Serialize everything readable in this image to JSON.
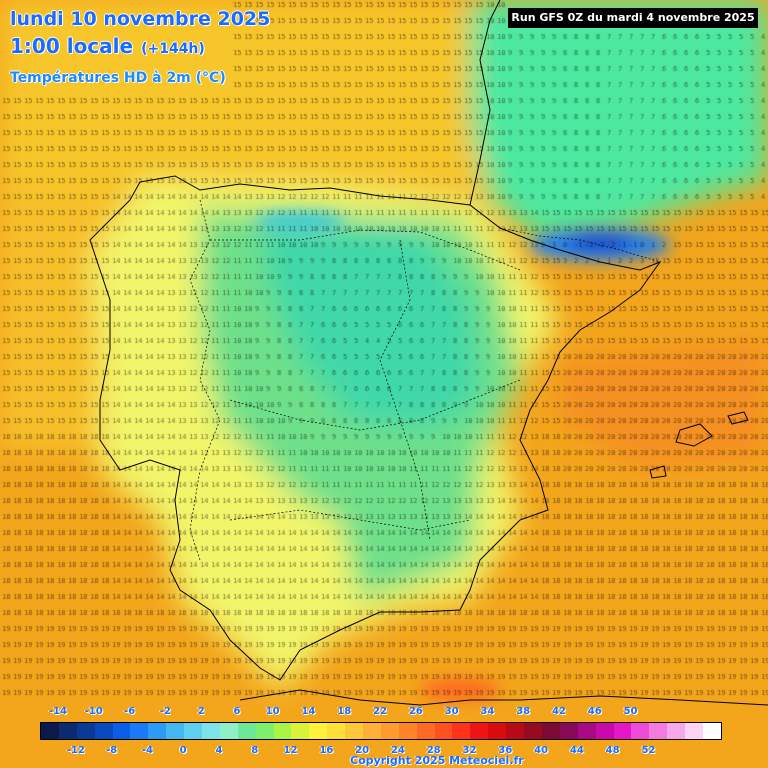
{
  "title": {
    "date": "lundi 10 novembre 2025",
    "time": "1:00 locale",
    "offset": "(+144h)",
    "parameter": "Températures HD à 2m (°C)"
  },
  "run_label": "Run GFS 0Z du mardi 4 novembre 2025",
  "copyright": "Copyright 2025 Meteociel.fr",
  "legend": {
    "swatch_colors": [
      "#0b1a4a",
      "#0c2a6e",
      "#0a3a96",
      "#0a48c0",
      "#0b5ee8",
      "#1b7af5",
      "#2d9bf5",
      "#45b8f2",
      "#5fd0f0",
      "#7fe3ea",
      "#8ef0c8",
      "#6ee896",
      "#7cf06a",
      "#a8f545",
      "#d8f33a",
      "#fff23a",
      "#ffe03a",
      "#ffc83a",
      "#ffb03a",
      "#ff9a2e",
      "#ff8428",
      "#ff6a24",
      "#ff5020",
      "#ff321c",
      "#f01414",
      "#d80c0c",
      "#b80a14",
      "#980a20",
      "#7c0a34",
      "#8a0a5a",
      "#a80a86",
      "#c80aaa",
      "#e418c8",
      "#f04ad8",
      "#f57ae0",
      "#f8a8ea",
      "#fcd4f4",
      "#ffffff"
    ],
    "ticks_top": [
      "-14",
      "-10",
      "-6",
      "-2",
      "2",
      "6",
      "10",
      "14",
      "18",
      "22",
      "26",
      "30",
      "34",
      "38",
      "42",
      "46",
      "50"
    ],
    "ticks_bottom": [
      "-12",
      "-8",
      "-4",
      "0",
      "4",
      "8",
      "12",
      "16",
      "20",
      "24",
      "28",
      "32",
      "36",
      "40",
      "44",
      "48",
      "52"
    ]
  }
}
